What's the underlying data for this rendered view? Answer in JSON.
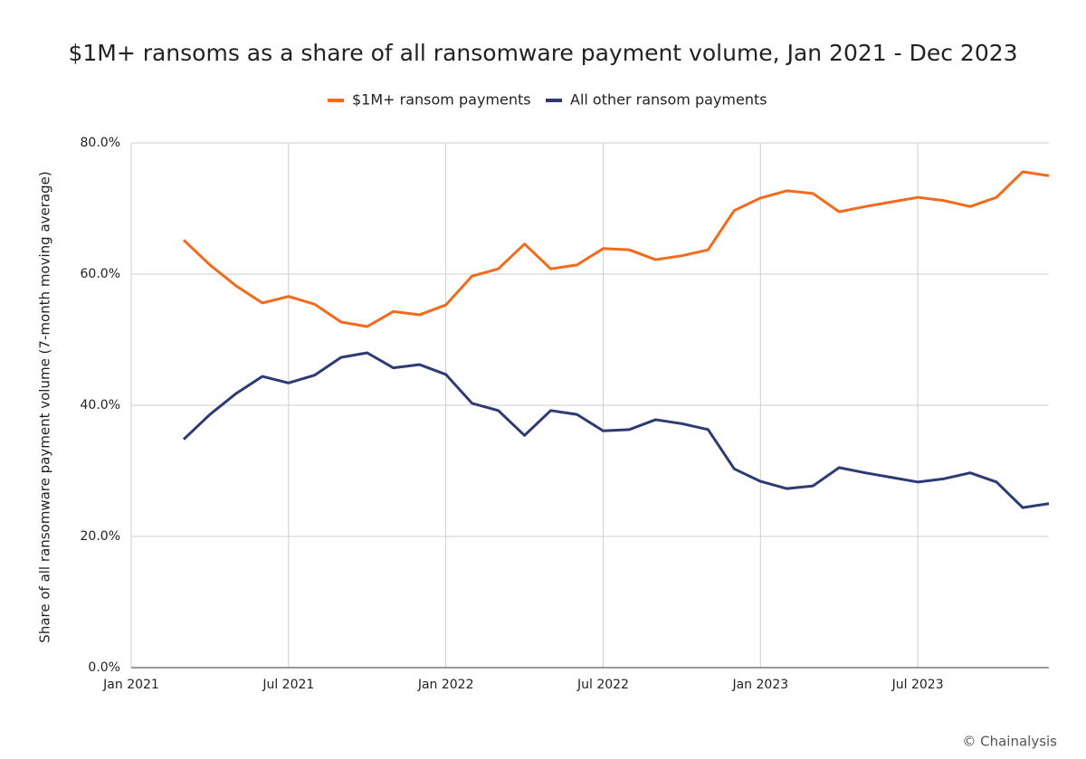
{
  "chart_data": {
    "type": "line",
    "title": "$1M+ ransoms as a share of all ransomware payment volume, Jan 2021 - Dec 2023",
    "y_label": "Share of all ransomware payment volume (7-month moving average)",
    "source": "© Chainalysis",
    "x": [
      "2021-03",
      "2021-04",
      "2021-05",
      "2021-06",
      "2021-07",
      "2021-08",
      "2021-09",
      "2021-10",
      "2021-11",
      "2021-12",
      "2022-01",
      "2022-02",
      "2022-03",
      "2022-04",
      "2022-05",
      "2022-06",
      "2022-07",
      "2022-08",
      "2022-09",
      "2022-10",
      "2022-11",
      "2022-12",
      "2023-01",
      "2023-02",
      "2023-03",
      "2023-04",
      "2023-05",
      "2023-06",
      "2023-07",
      "2023-08",
      "2023-09",
      "2023-10",
      "2023-11",
      "2023-12"
    ],
    "series": [
      {
        "name": "$1M+ ransom payments",
        "color": "#f26a1b",
        "values": [
          65.2,
          61.4,
          58.2,
          55.6,
          56.6,
          55.4,
          52.7,
          52.0,
          54.3,
          53.8,
          55.3,
          59.7,
          60.8,
          64.6,
          60.8,
          61.4,
          63.9,
          63.7,
          62.2,
          62.8,
          63.7,
          69.7,
          71.6,
          72.7,
          72.3,
          69.5,
          70.3,
          71.0,
          71.7,
          71.2,
          70.3,
          71.7,
          75.6,
          75.0
        ]
      },
      {
        "name": "All other ransom payments",
        "color": "#2c3b74",
        "values": [
          34.8,
          38.6,
          41.8,
          44.4,
          43.4,
          44.6,
          47.3,
          48.0,
          45.7,
          46.2,
          44.7,
          40.3,
          39.2,
          35.4,
          39.2,
          38.6,
          36.1,
          36.3,
          37.8,
          37.2,
          36.3,
          30.3,
          28.4,
          27.3,
          27.7,
          30.5,
          29.7,
          29.0,
          28.3,
          28.8,
          29.7,
          28.3,
          24.4,
          25.0
        ]
      }
    ],
    "xlim": [
      "2021-01",
      "2023-12"
    ],
    "xticks": [
      {
        "value": "2021-01",
        "label": "Jan 2021"
      },
      {
        "value": "2021-07",
        "label": "Jul 2021"
      },
      {
        "value": "2022-01",
        "label": "Jan 2022"
      },
      {
        "value": "2022-07",
        "label": "Jul 2022"
      },
      {
        "value": "2023-01",
        "label": "Jan 2023"
      },
      {
        "value": "2023-07",
        "label": "Jul 2023"
      }
    ],
    "ylim": [
      0,
      80
    ],
    "yticks": [
      {
        "value": 0,
        "label": "0.0%"
      },
      {
        "value": 20,
        "label": "20.0%"
      },
      {
        "value": 40,
        "label": "40.0%"
      },
      {
        "value": 60,
        "label": "60.0%"
      },
      {
        "value": 80,
        "label": "80.0%"
      }
    ],
    "grid": true,
    "legend": "top"
  }
}
